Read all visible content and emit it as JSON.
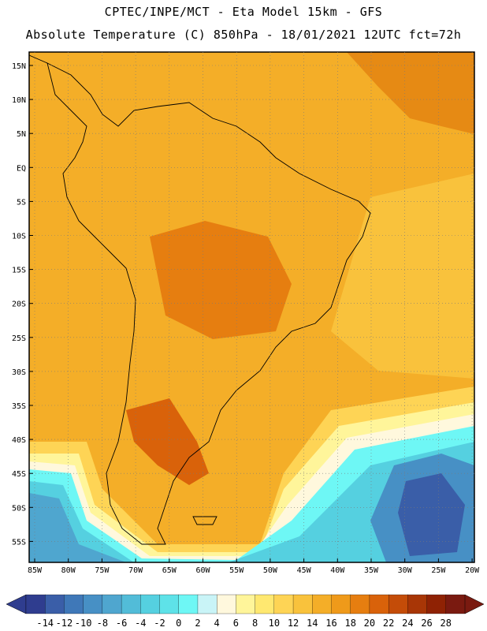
{
  "header": {
    "line1": "CPTEC/INPE/MCT -  Eta Model 15km - GFS",
    "line2": "Absolute Temperature (C) 850hPa - 18/01/2021 12UTC fct=72h"
  },
  "axes": {
    "lon_ticks": [
      "85W",
      "80W",
      "75W",
      "70W",
      "65W",
      "60W",
      "55W",
      "50W",
      "45W",
      "40W",
      "35W",
      "30W",
      "25W",
      "20W"
    ],
    "lat_ticks": [
      "15N",
      "10N",
      "5N",
      "EQ",
      "5S",
      "10S",
      "15S",
      "20S",
      "25S",
      "30S",
      "35S",
      "40S",
      "45S",
      "50S",
      "55S"
    ]
  },
  "colorbar": {
    "labels": [
      "-14",
      "-12",
      "-10",
      "-8",
      "-6",
      "-4",
      "-2",
      "0",
      "2",
      "4",
      "6",
      "8",
      "10",
      "12",
      "14",
      "16",
      "18",
      "20",
      "22",
      "24",
      "26",
      "28"
    ],
    "colors": [
      "#2f3d8f",
      "#3a5ea8",
      "#3f78b8",
      "#4790c5",
      "#4fa6cf",
      "#52bcd8",
      "#55d0e0",
      "#5ee2e8",
      "#6ef7f5",
      "#c9f4f7",
      "#fff8dd",
      "#fff59a",
      "#ffe870",
      "#fed455",
      "#f9c23c",
      "#f4ae28",
      "#ef9a1a",
      "#e67e10",
      "#d9620a",
      "#c44c08",
      "#a83606",
      "#8f2204",
      "#7a1a10"
    ],
    "under_color": "#2f3d8f",
    "over_color": "#7a1a10"
  },
  "map": {
    "field": "Absolute Temperature",
    "units": "C",
    "level": "850hPa",
    "lon_range": [
      -86,
      -20
    ],
    "lat_range": [
      -58,
      16
    ]
  }
}
